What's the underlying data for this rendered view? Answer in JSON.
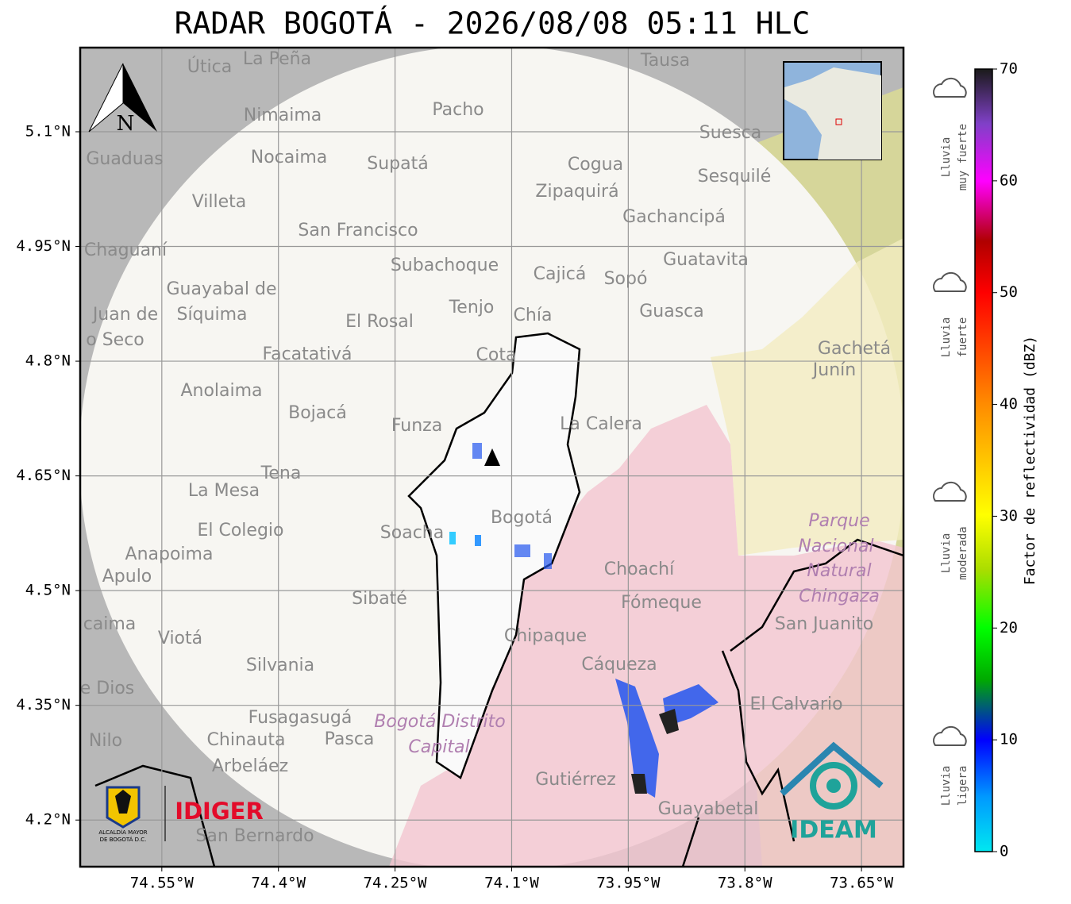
{
  "header": {
    "title": "RADAR BOGOTÁ - 2026/08/08 05:11 HLC"
  },
  "map": {
    "xlim": [
      -74.655,
      -73.596
    ],
    "ylim": [
      4.139,
      5.21
    ],
    "xticks": [
      {
        "value": -74.55,
        "label": "74.55°W"
      },
      {
        "value": -74.4,
        "label": "74.4°W"
      },
      {
        "value": -74.25,
        "label": "74.25°W"
      },
      {
        "value": -74.1,
        "label": "74.1°W"
      },
      {
        "value": -73.95,
        "label": "73.95°W"
      },
      {
        "value": -73.8,
        "label": "73.8°W"
      },
      {
        "value": -73.65,
        "label": "73.65°W"
      }
    ],
    "yticks": [
      {
        "value": 5.1,
        "label": "5.1°N"
      },
      {
        "value": 4.95,
        "label": "4.95°N"
      },
      {
        "value": 4.8,
        "label": "4.8°N"
      },
      {
        "value": 4.65,
        "label": "4.65°N"
      },
      {
        "value": 4.5,
        "label": "4.5°N"
      },
      {
        "value": 4.35,
        "label": "4.35°N"
      },
      {
        "value": 4.2,
        "label": "4.2°N"
      }
    ],
    "grid": true,
    "compass": "N",
    "places": [
      "Útica",
      "La Peña",
      "Tausa",
      "Pacho",
      "Nimaima",
      "Guaduas",
      "Nocaima",
      "Supatá",
      "Cogua",
      "Suesca",
      "Sesquilé",
      "Zipaquirá",
      "Villeta",
      "Gachancipá",
      "San Francisco",
      "Chaguaní",
      "Guatavita",
      "Subachoque",
      "Cajicá",
      "Sopó",
      "Guayabal de",
      "Síquima",
      "Tenjo",
      "Chía",
      "Guasca",
      "Juan de",
      "o Seco",
      "El Rosal",
      "Facatativá",
      "Cota",
      "Gachetá",
      "Junín",
      "Anolaima",
      "Bojacá",
      "Funza",
      "La Calera",
      "Tena",
      "La Mesa",
      "Bogotá",
      "Soacha",
      "Parque",
      "Nacional",
      "Natural",
      "Chingaza",
      "El Colegio",
      "Anapoima",
      "Apulo",
      "Choachí",
      "Sibaté",
      "Fómeque",
      "San Juanito",
      "caima",
      "Chipaque",
      "Viotá",
      "Cáqueza",
      "Silvania",
      "e Dios",
      "El Calvario",
      "Fusagasugá",
      "Bogotá Distrito",
      "Capital",
      "Chinauta",
      "Pasca",
      "Nilo",
      "Arbeláez",
      "Gutiérrez",
      "Guayabetal",
      "San Bernardo"
    ]
  },
  "colorbar": {
    "label": "Factor de reflectividad (dBZ)",
    "lim": [
      0,
      70
    ],
    "ticks": [
      0,
      10,
      20,
      30,
      40,
      50,
      60,
      70
    ],
    "levels": [
      [
        "Lluvia",
        "muy fuerte"
      ],
      [
        "Lluvia",
        "fuerte"
      ],
      [
        "Lluvia",
        "moderada"
      ],
      [
        "Lluvia",
        "ligera"
      ]
    ]
  },
  "logos": {
    "alcaldia": [
      "ALCALDÍA MAYOR",
      "DE BOGOTÁ D.C."
    ],
    "idiger": "IDIGER",
    "ideam": "IDEAM"
  }
}
